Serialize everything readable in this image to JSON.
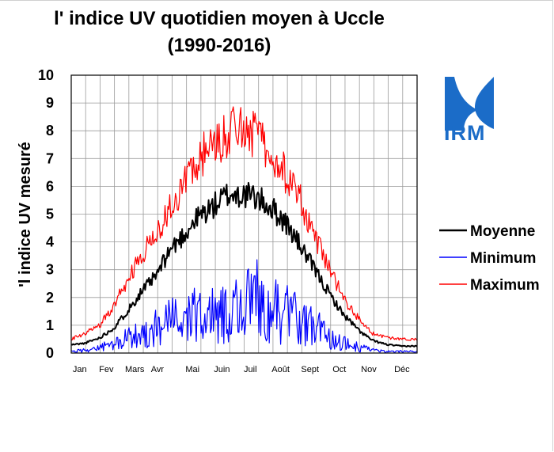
{
  "chart_data": {
    "type": "line",
    "title": [
      "l' indice UV quotidien moyen à Uccle",
      "(1990-2016)"
    ],
    "ylabel": "'l indice UV mesuré",
    "xlabel": "",
    "ylim": [
      0,
      10
    ],
    "yticks": [
      0,
      1,
      2,
      3,
      4,
      5,
      6,
      7,
      8,
      9,
      10
    ],
    "grid": true,
    "x_unit": "day of year",
    "xlim": [
      1,
      366
    ],
    "month_labels": [
      "Jan",
      "Fev",
      "Mars",
      "Avr",
      "Mai",
      "Juin",
      "Juil",
      "Août",
      "Sept",
      "Oct",
      "Nov",
      "Déc"
    ],
    "month_label_day": [
      10,
      38,
      68,
      92,
      129,
      160,
      190,
      222,
      253,
      284,
      315,
      350
    ],
    "legend": {
      "position": "right",
      "items": [
        "Moyenne",
        "Minimum",
        "Maximum"
      ]
    },
    "series": [
      {
        "name": "Moyenne",
        "color": "#000000",
        "x": [
          1,
          15,
          31,
          46,
          60,
          75,
          91,
          105,
          121,
          135,
          152,
          166,
          182,
          196,
          213,
          227,
          244,
          258,
          274,
          288,
          305,
          319,
          335,
          349,
          366
        ],
        "y": [
          0.3,
          0.35,
          0.55,
          0.9,
          1.5,
          2.2,
          2.8,
          3.7,
          4.3,
          4.9,
          5.3,
          5.7,
          5.7,
          5.6,
          5.2,
          4.7,
          3.8,
          3.0,
          2.1,
          1.4,
          0.8,
          0.45,
          0.3,
          0.25,
          0.25
        ]
      },
      {
        "name": "Minimum",
        "color": "#0000ff",
        "x": [
          1,
          15,
          31,
          46,
          60,
          75,
          91,
          105,
          121,
          135,
          152,
          166,
          182,
          196,
          213,
          227,
          244,
          258,
          274,
          288,
          305,
          319,
          335,
          349,
          366
        ],
        "y": [
          0.05,
          0.1,
          0.2,
          0.3,
          0.5,
          0.7,
          0.9,
          1.1,
          1.3,
          1.3,
          1.4,
          1.5,
          1.7,
          1.9,
          1.6,
          1.4,
          1.1,
          0.9,
          0.6,
          0.35,
          0.2,
          0.1,
          0.05,
          0.05,
          0.05
        ]
      },
      {
        "name": "Maximum",
        "color": "#ff0000",
        "x": [
          1,
          15,
          31,
          46,
          60,
          75,
          91,
          105,
          121,
          135,
          152,
          166,
          182,
          196,
          213,
          227,
          244,
          258,
          274,
          288,
          305,
          319,
          335,
          349,
          366
        ],
        "y": [
          0.5,
          0.7,
          1.0,
          1.7,
          2.6,
          3.5,
          4.3,
          5.3,
          6.1,
          7.0,
          7.5,
          7.9,
          8.2,
          7.8,
          7.3,
          6.4,
          5.4,
          4.2,
          3.0,
          2.0,
          1.2,
          0.7,
          0.55,
          0.5,
          0.5
        ]
      }
    ]
  },
  "logo": {
    "text": "IRM",
    "color": "#1b6cc8"
  }
}
